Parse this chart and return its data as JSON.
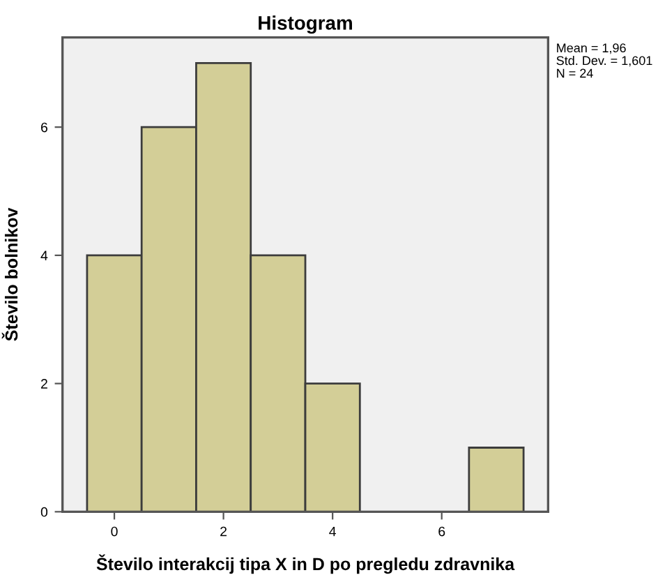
{
  "chart_data": {
    "type": "histogram",
    "title": "Histogram",
    "xlabel": "Število interakcij tipa X in D po pregledu zdravnika",
    "ylabel": "Število bolnikov",
    "bins": [
      -0.5,
      0.5,
      1.5,
      2.5,
      3.5,
      4.5,
      5.5,
      6.5,
      7.5
    ],
    "values": [
      4,
      6,
      7,
      4,
      2,
      0,
      0,
      1
    ],
    "color": "#d3ce97",
    "xlim": [
      -0.95,
      7.95
    ],
    "xticks": [
      0,
      2,
      4,
      6
    ],
    "ylim": [
      0,
      7.4
    ],
    "yticks": [
      0,
      2,
      4,
      6
    ],
    "grid": false,
    "legend": false,
    "annotations": [
      "Mean = 1,96",
      "Std. Dev. = 1,601",
      "N = 24"
    ]
  }
}
